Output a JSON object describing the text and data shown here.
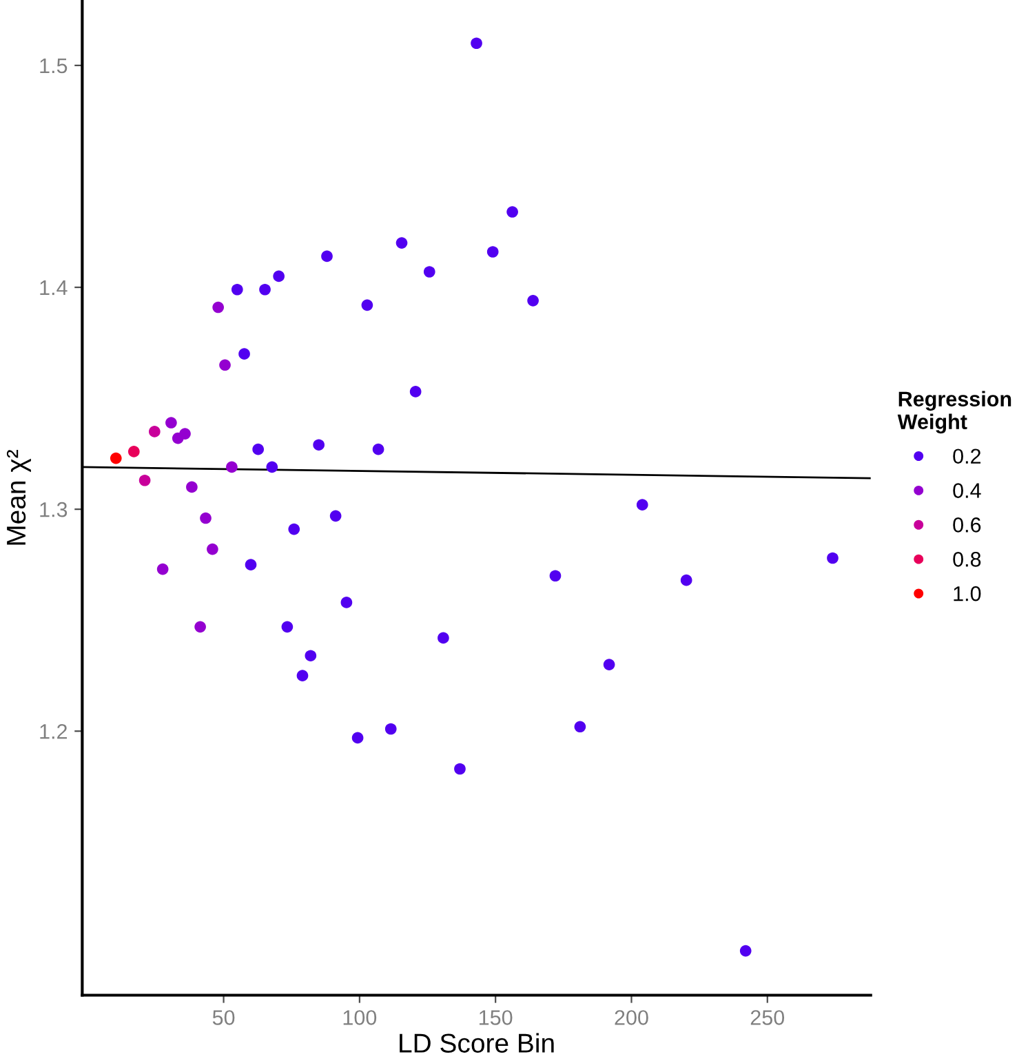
{
  "chart_data": {
    "type": "scatter",
    "xlabel": "LD Score Bin",
    "ylabel": "Mean χ²",
    "legend_title": "Regression\nWeight",
    "legend": "right",
    "grid": false,
    "xlim": [
      -2,
      288
    ],
    "ylim": [
      1.081,
      1.529
    ],
    "xticks": [
      50,
      100,
      150,
      200,
      250
    ],
    "yticks": [
      1.2,
      1.3,
      1.4,
      1.5
    ],
    "series": [
      {
        "name": "0.2",
        "color": "#5200f0",
        "marker": "circle",
        "x": [
          55,
          57.6,
          60,
          62.7,
          65.2,
          67.8,
          70.3,
          73.4,
          75.9,
          79,
          82,
          85,
          88,
          91.2,
          95.2,
          99.3,
          102.8,
          106.9,
          111.5,
          115.5,
          120.6,
          125.7,
          130.8,
          136.9,
          143,
          149,
          156.2,
          163.8,
          172,
          181.1,
          191.8,
          204,
          220.2,
          242,
          274
        ],
        "values": [
          1.399,
          1.37,
          1.275,
          1.327,
          1.399,
          1.319,
          1.405,
          1.247,
          1.291,
          1.225,
          1.234,
          1.329,
          1.414,
          1.297,
          1.258,
          1.197,
          1.392,
          1.327,
          1.201,
          1.42,
          1.353,
          1.407,
          1.242,
          1.183,
          1.51,
          1.416,
          1.434,
          1.394,
          1.27,
          1.202,
          1.23,
          1.302,
          1.268,
          1.101,
          1.278
        ]
      },
      {
        "name": "0.4",
        "color": "#9400d0",
        "marker": "circle",
        "x": [
          27.6,
          30.7,
          33.2,
          35.8,
          38.3,
          41.4,
          43.4,
          45.9,
          48,
          50.5,
          53
        ],
        "values": [
          1.273,
          1.339,
          1.332,
          1.334,
          1.31,
          1.247,
          1.296,
          1.282,
          1.391,
          1.365,
          1.319
        ]
      },
      {
        "name": "0.6",
        "color": "#c8009a",
        "marker": "circle",
        "x": [
          21,
          24.6
        ],
        "values": [
          1.313,
          1.335
        ]
      },
      {
        "name": "0.8",
        "color": "#e8005a",
        "marker": "circle",
        "x": [
          17
        ],
        "values": [
          1.326
        ]
      },
      {
        "name": "1.0",
        "color": "#ff0000",
        "marker": "circle",
        "x": [
          10.4
        ],
        "values": [
          1.323
        ]
      },
      {
        "type": "line",
        "x": [
          -2,
          288
        ],
        "values": [
          1.319,
          1.314
        ],
        "color": "#000000",
        "line_style": "solid"
      }
    ]
  }
}
